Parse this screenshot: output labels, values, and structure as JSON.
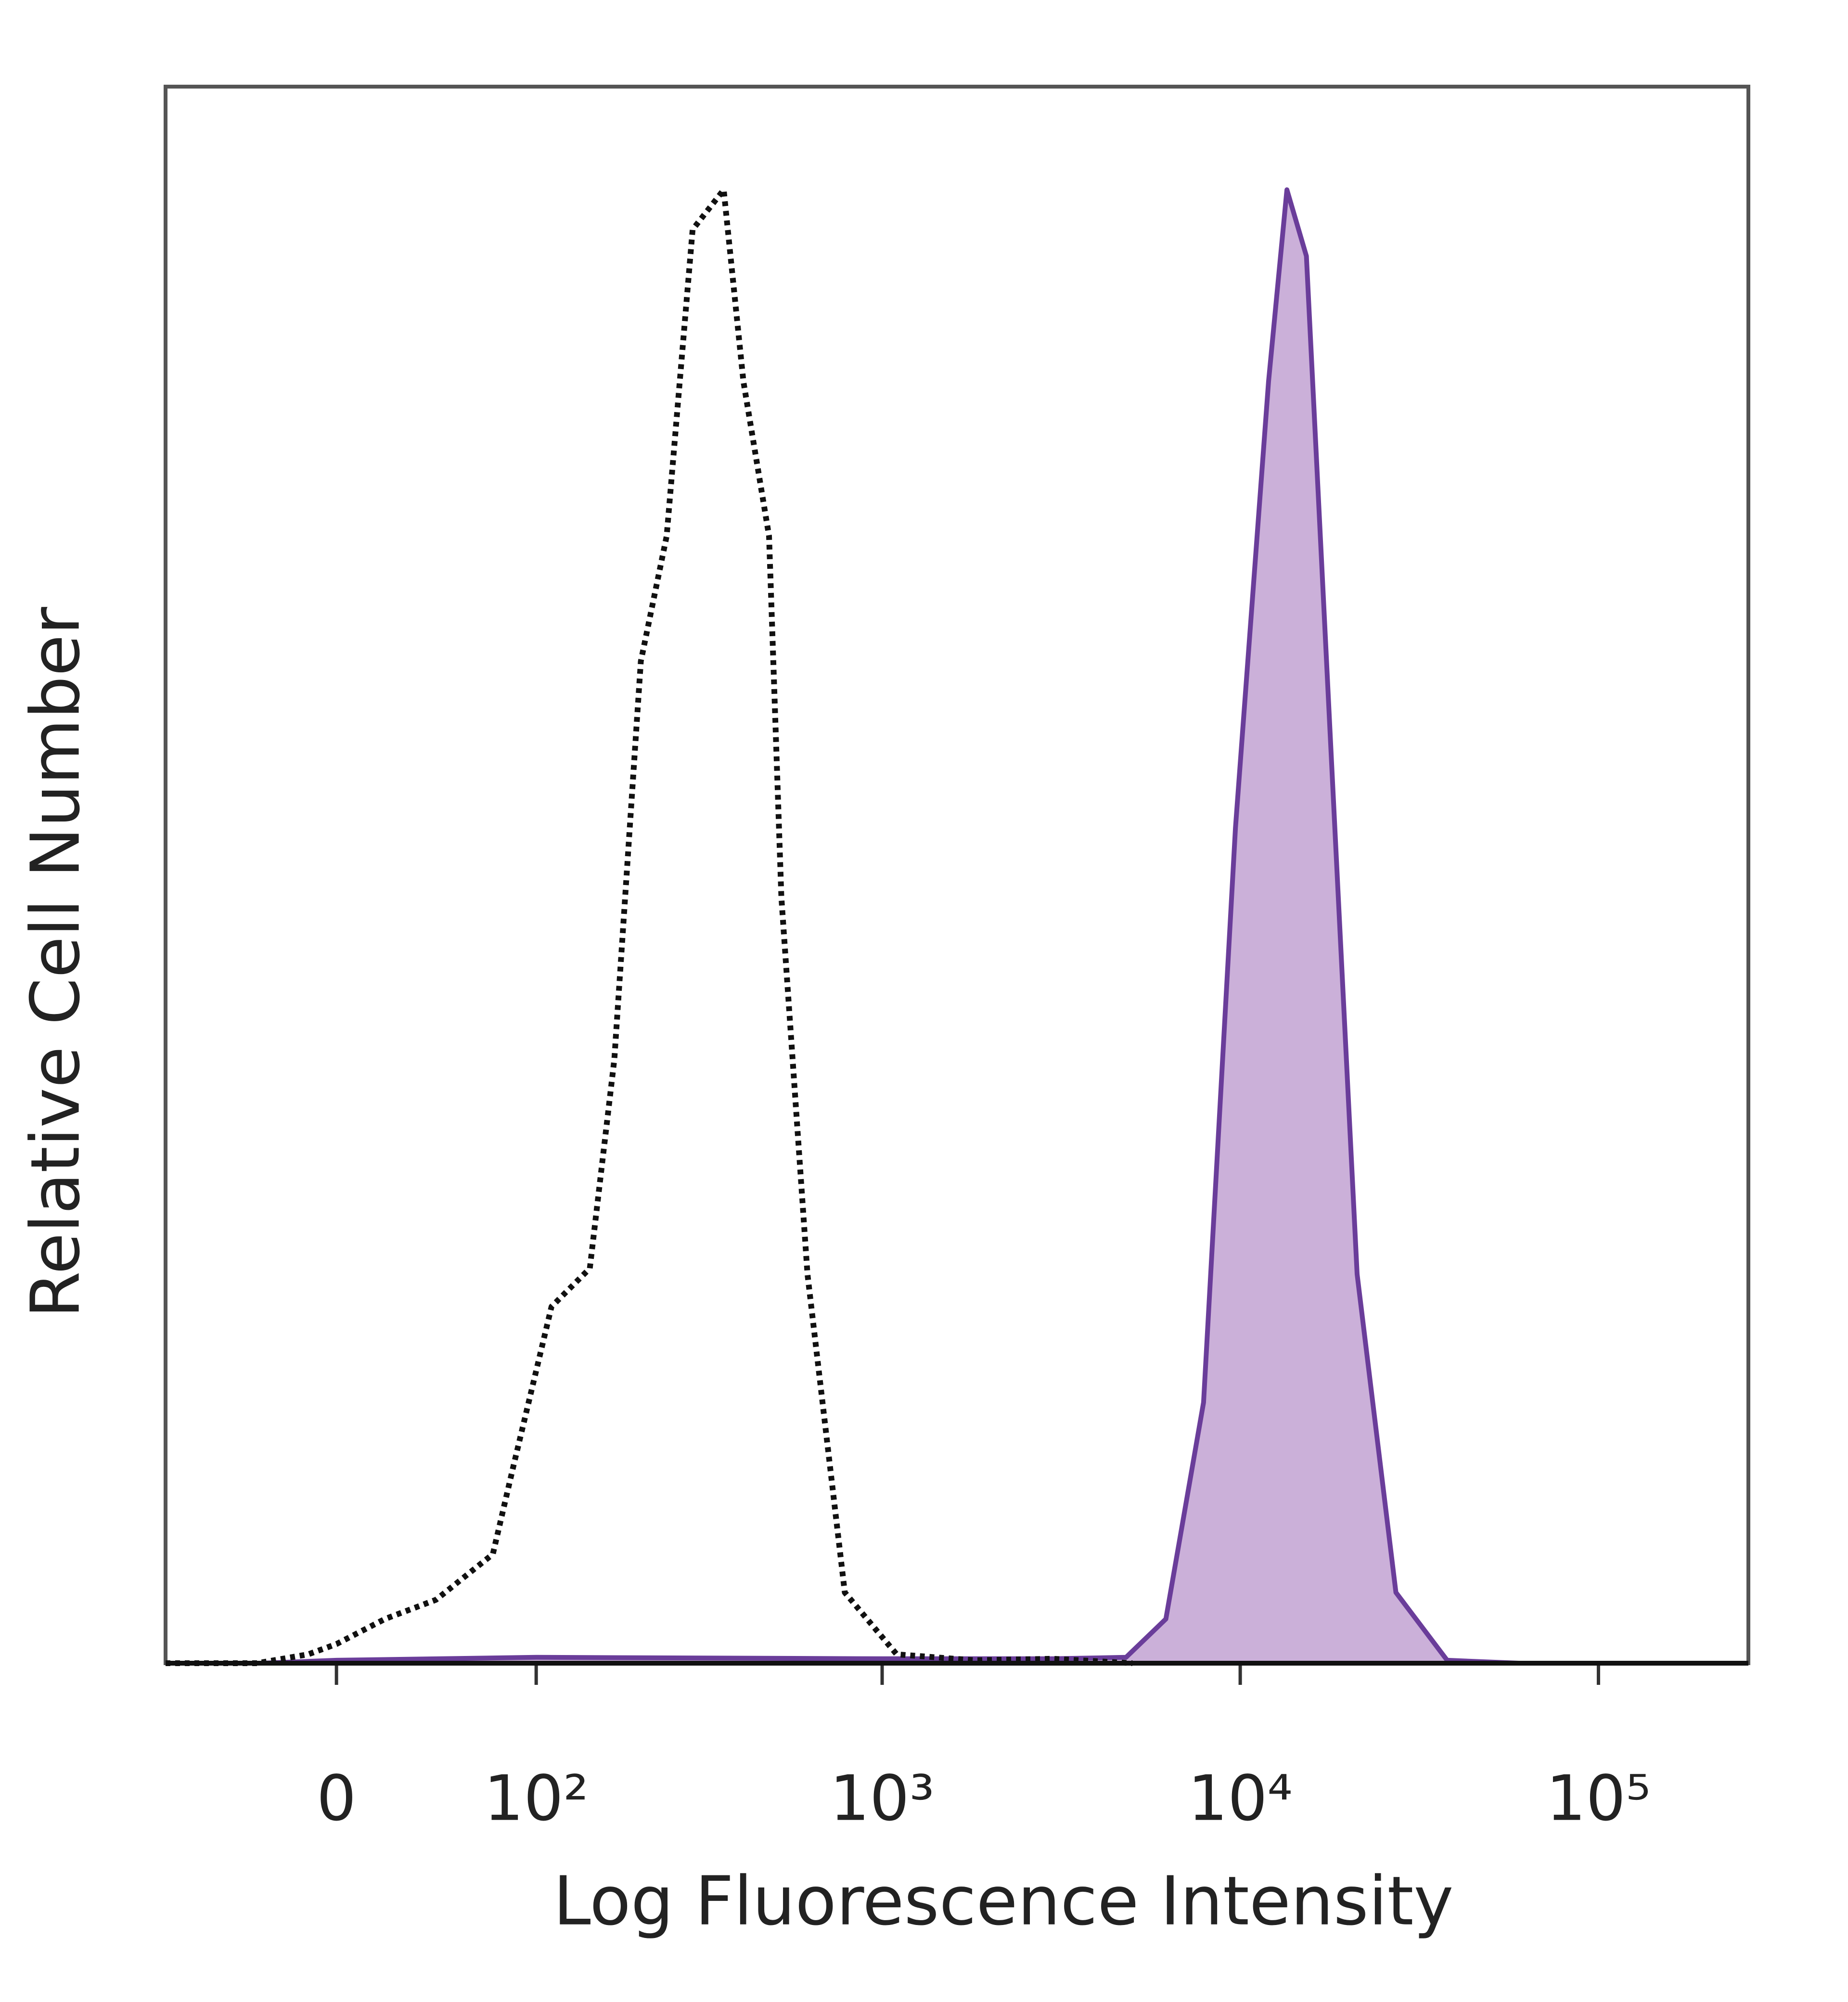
{
  "chart_data": {
    "type": "histogram-overlay",
    "x_label": "Log Fluorescence Intensity",
    "y_label": "Relative Cell Number",
    "xscale": "biexponential",
    "xlim": [
      -80,
      262144
    ],
    "ylim": [
      0,
      107
    ],
    "xticks": [
      {
        "value": 0,
        "label": "0"
      },
      {
        "value": 100,
        "label": "10²"
      },
      {
        "value": 1000,
        "label": "10³"
      },
      {
        "value": 10000,
        "label": "10⁴"
      },
      {
        "value": 100000,
        "label": "10⁵"
      }
    ],
    "series": [
      {
        "color": "#6a3d9a",
        "fill": "#cbb0d9",
        "line_style": "solid",
        "x": [
          -80,
          -30,
          0,
          100,
          1000,
          3000,
          4800,
          6200,
          7900,
          9700,
          12000,
          13500,
          15300,
          18000,
          21200,
          27200,
          37800,
          60000,
          262144
        ],
        "values": [
          0,
          0,
          0.2,
          0.4,
          0.3,
          0.3,
          0.4,
          3,
          17.7,
          56.7,
          87,
          100,
          95.5,
          61,
          26.4,
          4.8,
          0.2,
          0,
          0
        ]
      },
      {
        "color": "#111111",
        "line_style": "dotted",
        "x": [
          -80,
          -32,
          -11,
          0,
          19,
          41,
          71,
          84,
          112,
          147,
          174,
          208,
          247,
          293,
          359,
          408,
          482,
          522,
          618,
          786,
          1098,
          1810,
          3000,
          5000
        ],
        "values": [
          0,
          0,
          0.6,
          1.3,
          3.0,
          4.3,
          7.4,
          13.4,
          24.2,
          26.8,
          41,
          68,
          76.5,
          97.3,
          100,
          87,
          76.5,
          52,
          26.4,
          4.8,
          0.6,
          0.2,
          0.3,
          0
        ]
      }
    ]
  }
}
